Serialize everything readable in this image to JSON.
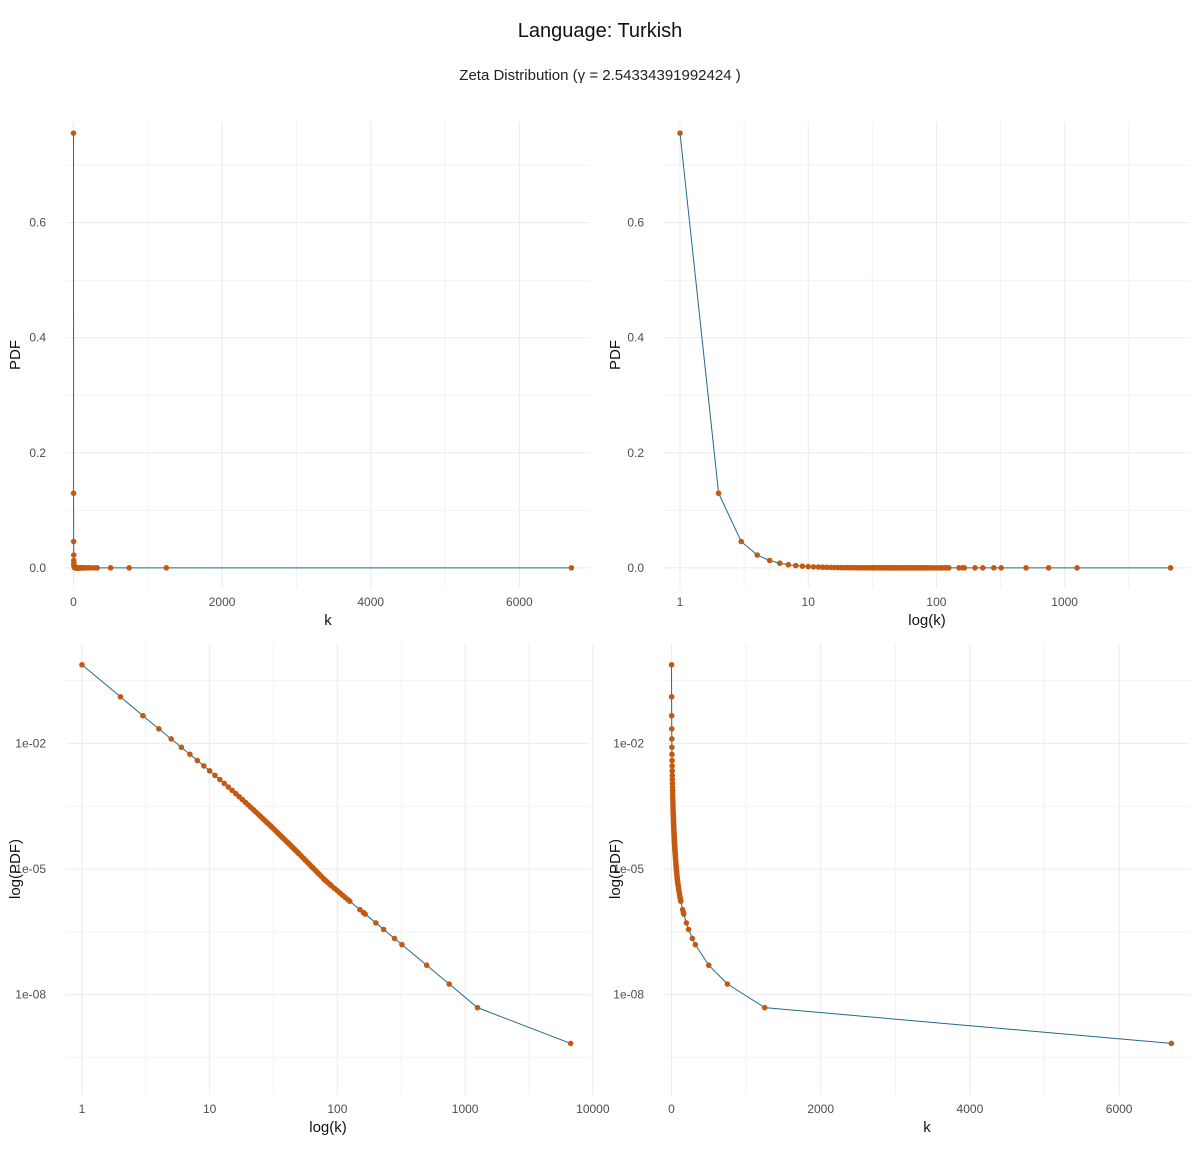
{
  "title": "Language:  Turkish",
  "subtitle": "Zeta Distribution (γ = 2.54334391992424 )",
  "colors": {
    "line": "#1f6b8c",
    "point": "#c45a12",
    "grid": "#ebebeb"
  },
  "chart_data": [
    {
      "type": "line",
      "xlabel": "k",
      "ylabel": "PDF",
      "x_scale": "linear",
      "y_scale": "linear",
      "xlim": [
        -100,
        6950
      ],
      "ylim": [
        -0.035,
        0.775
      ],
      "x_ticks": [
        0,
        2000,
        4000,
        6000
      ],
      "x_tick_labels": [
        "0",
        "2000",
        "4000",
        "6000"
      ],
      "y_ticks": [
        0,
        0.2,
        0.4,
        0.6
      ],
      "y_tick_labels": [
        "0.0",
        "0.2",
        "0.4",
        "0.6"
      ],
      "grid": true
    },
    {
      "type": "line",
      "xlabel": "log(k)",
      "ylabel": "PDF",
      "x_scale": "log",
      "y_scale": "linear",
      "xlim": [
        0.75,
        9500
      ],
      "ylim": [
        -0.035,
        0.775
      ],
      "x_ticks": [
        1,
        10,
        100,
        1000
      ],
      "x_tick_labels": [
        "1",
        "10",
        "100",
        "1000"
      ],
      "y_ticks": [
        0,
        0.2,
        0.4,
        0.6
      ],
      "y_tick_labels": [
        "0.0",
        "0.2",
        "0.4",
        "0.6"
      ],
      "grid": true
    },
    {
      "type": "line",
      "xlabel": "log(k)",
      "ylabel": "log(PDF)",
      "x_scale": "log",
      "y_scale": "log",
      "xlim": [
        0.75,
        9500
      ],
      "ylim": [
        4e-11,
        2.5
      ],
      "x_ticks": [
        1,
        10,
        100,
        1000,
        10000
      ],
      "x_tick_labels": [
        "1",
        "10",
        "100",
        "1000",
        "10000"
      ],
      "y_ticks": [
        1e-08,
        1e-05,
        0.01
      ],
      "y_tick_labels": [
        "1e-08",
        "1e-05",
        "1e-02"
      ],
      "grid": true
    },
    {
      "type": "line",
      "xlabel": "k",
      "ylabel": "log(PDF)",
      "x_scale": "linear",
      "y_scale": "log",
      "xlim": [
        -100,
        6950
      ],
      "ylim": [
        4e-11,
        2.5
      ],
      "x_ticks": [
        0,
        2000,
        4000,
        6000
      ],
      "x_tick_labels": [
        "0",
        "2000",
        "4000",
        "6000"
      ],
      "y_ticks": [
        1e-08,
        1e-05,
        0.01
      ],
      "y_tick_labels": [
        "1e-08",
        "1e-05",
        "1e-02"
      ],
      "grid": true
    }
  ],
  "series": {
    "gamma": 2.54334391992424,
    "k": [
      1,
      2,
      3,
      4,
      5,
      6,
      7,
      8,
      9,
      10,
      11,
      12,
      13,
      14,
      15,
      16,
      17,
      18,
      19,
      20,
      21,
      22,
      23,
      24,
      25,
      26,
      27,
      28,
      29,
      30,
      31,
      32,
      33,
      34,
      35,
      36,
      37,
      38,
      39,
      40,
      41,
      42,
      43,
      44,
      45,
      46,
      47,
      48,
      49,
      50,
      52,
      54,
      56,
      58,
      60,
      62,
      64,
      66,
      68,
      70,
      72,
      75,
      78,
      80,
      82,
      85,
      88,
      90,
      95,
      100,
      105,
      110,
      115,
      120,
      125,
      150,
      160,
      165,
      200,
      230,
      280,
      320,
      500,
      750,
      1250,
      6700
    ],
    "pdf": [
      0.75566,
      0.12975,
      0.04585,
      0.02228,
      0.01276,
      0.00808,
      0.00548,
      0.00391,
      0.0029,
      0.00221,
      0.00172,
      0.00137,
      0.00111,
      0.000909,
      0.000754,
      0.000632,
      0.000535,
      0.000457,
      0.000393,
      0.00034,
      0.000297,
      0.00026,
      0.000229,
      0.000203,
      0.000181,
      0.000161,
      0.000145,
      0.00013,
      0.000118,
      0.000107,
      9.69e-05,
      8.83e-05,
      8.06e-05,
      7.38e-05,
      6.77e-05,
      6.23e-05,
      5.74e-05,
      5.3e-05,
      4.91e-05,
      4.55e-05,
      4.23e-05,
      3.93e-05,
      3.66e-05,
      3.42e-05,
      3.19e-05,
      2.99e-05,
      2.8e-05,
      2.63e-05,
      2.47e-05,
      2.32e-05,
      2.06e-05,
      1.83e-05,
      1.64e-05,
      1.47e-05,
      1.32e-05,
      1.19e-05,
      1.08e-05,
      9.83e-06,
      8.96e-06,
      8.19e-06,
      7.5e-06,
      6.62e-06,
      5.86e-06,
      5.42e-06,
      5.08e-06,
      4.61e-06,
      4.21e-06,
      3.96e-06,
      3.44e-06,
      3.02e-06,
      2.66e-06,
      2.36e-06,
      2.1e-06,
      1.89e-06,
      1.7e-06,
      1.07e-06,
      9.09e-07,
      8.39e-07,
      5.15e-07,
      3.61e-07,
      2.19e-07,
      1.56e-07,
      5.03e-08,
      1.79e-08,
      4.88e-09,
      6.82e-10
    ]
  }
}
